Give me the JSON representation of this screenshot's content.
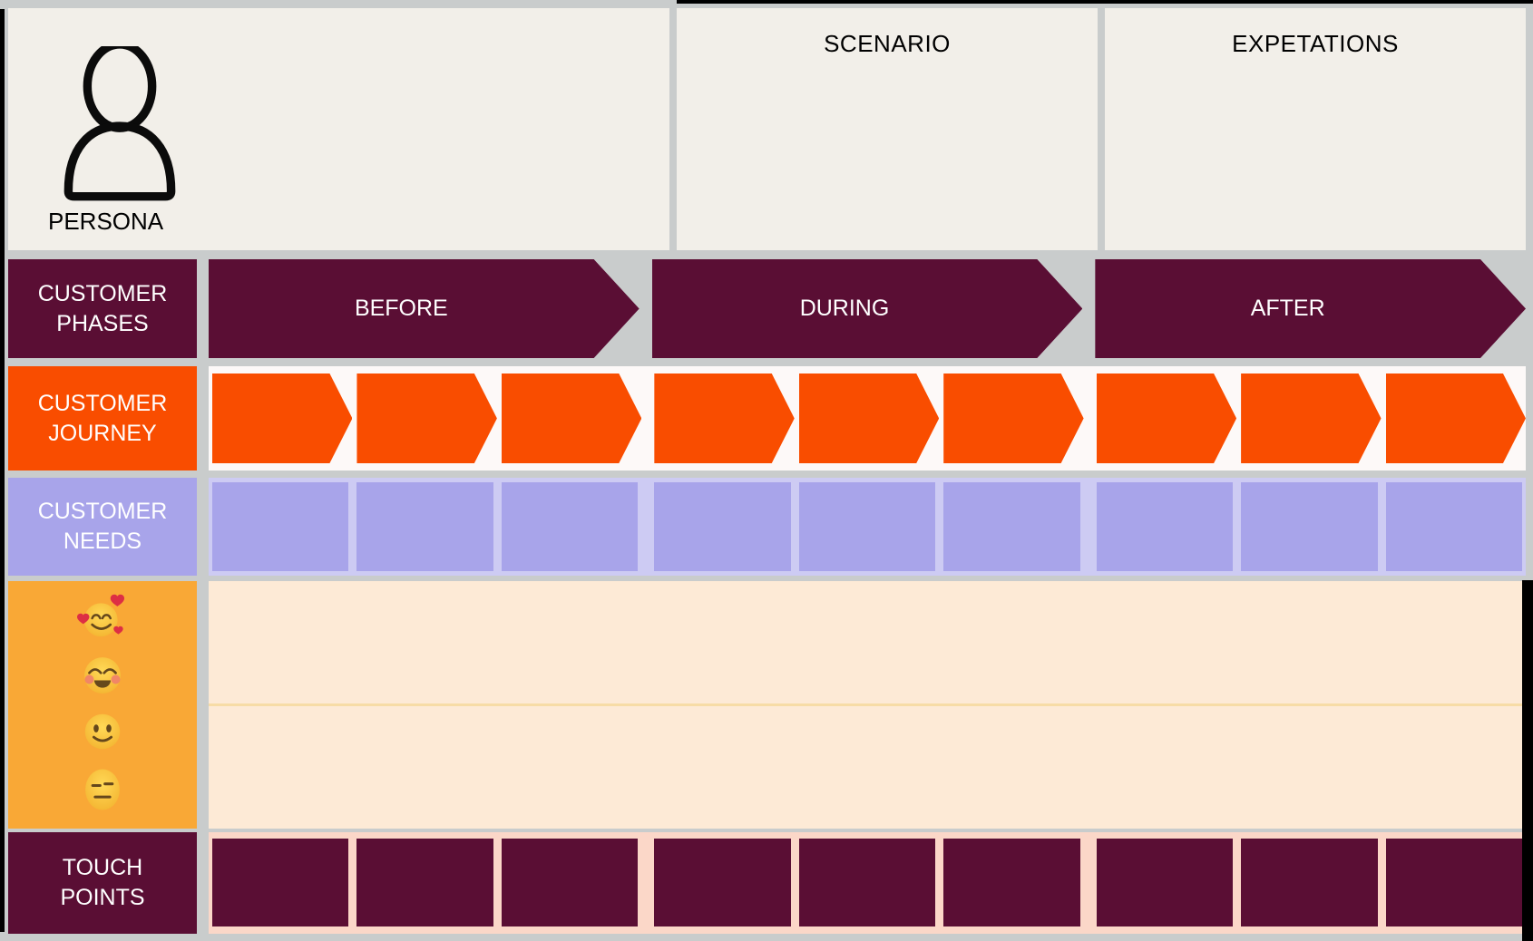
{
  "top_panels": {
    "persona": {
      "label": "PERSONA",
      "icon": "person-icon"
    },
    "scenario": {
      "label": "SCENARIO"
    },
    "expectations": {
      "label": "EXPETATIONS"
    }
  },
  "phases": {
    "row_label": "CUSTOMER PHASES",
    "items": [
      "BEFORE",
      "DURING",
      "AFTER"
    ]
  },
  "journey": {
    "row_label": "CUSTOMER JOURNEY",
    "steps_per_phase": 3,
    "total_steps": 9
  },
  "needs": {
    "row_label": "CUSTOMER NEEDS",
    "cells_per_phase": 3,
    "total_cells": 9
  },
  "emotions": {
    "icons": [
      "smiling-face-with-hearts-icon",
      "smiling-face-blushing-icon",
      "slightly-smiling-face-icon",
      "expressionless-face-icon"
    ]
  },
  "touchpoints": {
    "row_label": "TOUCH POINTS",
    "cells_per_phase": 3,
    "total_cells": 9
  },
  "colors": {
    "canvas_gray": "#C9CCCC",
    "panel_beige": "#F2EFE9",
    "maroon": "#5A0E34",
    "journey_orange": "#F94D00",
    "journey_row_bg": "#FDF9F8",
    "lavender": "#A8A4EA",
    "lavender_bg": "#CDCBF3",
    "emotions_orange": "#F9A836",
    "emotions_bg": "#FDEAD6",
    "emotion_line": "#F7DCA6",
    "touch_row_bg": "#FBD7C8",
    "edge_black": "#000000"
  }
}
